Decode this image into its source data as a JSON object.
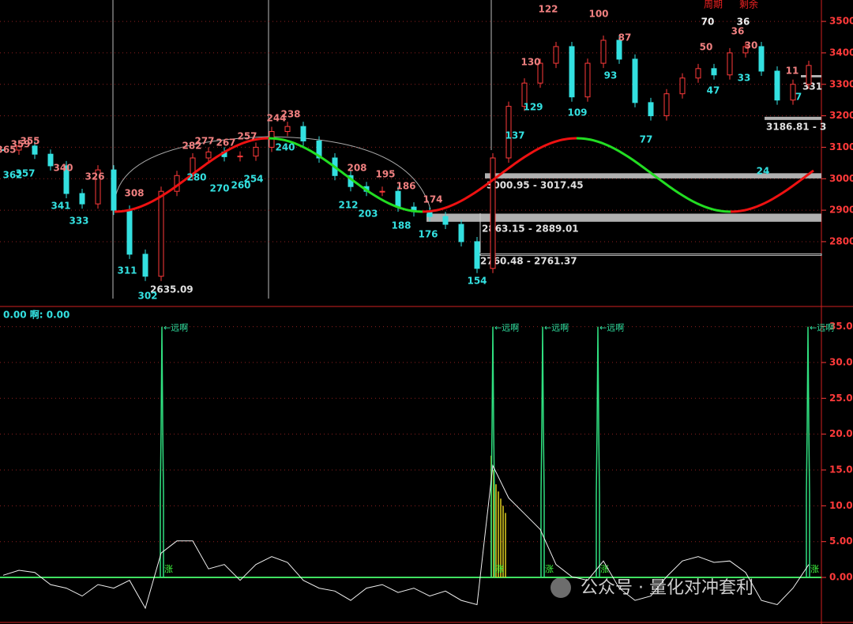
{
  "price_panel": {
    "ylim": [
      2594,
      3568
    ],
    "yticks": [
      2800,
      2900,
      3000,
      3100,
      3200,
      3300,
      3400,
      3500
    ],
    "closes": [
      3091,
      3104,
      3078,
      3041,
      2953,
      2920,
      3028,
      2900,
      2760,
      2690,
      2960,
      3010,
      3066,
      3085,
      3070,
      3072,
      3100,
      3150,
      3166,
      3120,
      3066,
      3010,
      2975,
      2960,
      2960,
      2910,
      2895,
      2880,
      2855,
      2800,
      2715,
      3066,
      3230,
      3304,
      3367,
      3420,
      3260,
      3367,
      3440,
      3380,
      3242,
      3200,
      3270,
      3320,
      3350,
      3330,
      3400,
      3420,
      3342,
      3250,
      3300,
      3360
    ],
    "high_labels": [
      365,
      359,
      355,
      340,
      326,
      308,
      282,
      277,
      267,
      257,
      244,
      238,
      208,
      195,
      186,
      174,
      122,
      100,
      130,
      87,
      50,
      36,
      30,
      11
    ],
    "low_labels": [
      362,
      357,
      341,
      333,
      311,
      302,
      280,
      270,
      260,
      254,
      240,
      212,
      203,
      188,
      176,
      154,
      137,
      129,
      109,
      93,
      77,
      47,
      33,
      24,
      7
    ],
    "ranges": [
      {
        "low": 3000.95,
        "high": 3017.45,
        "label": "3000.95 - 3017.45"
      },
      {
        "low": 2863.15,
        "high": 2889.01,
        "label": "2863.15 - 2889.01"
      },
      {
        "low": 2760.48,
        "high": 2761.37,
        "label": "2760.48 - 2761.37"
      },
      {
        "low": 3186.81,
        "label": "3186.81 - 3"
      }
    ],
    "point_labels": [
      "2635.09",
      "331"
    ],
    "headers": [
      "周期",
      "剩余"
    ],
    "header_values": [
      70,
      36
    ]
  },
  "indicator_panel": {
    "title": "0.00 啊: 0.00",
    "ylim": [
      -6.5,
      37.6
    ],
    "yticks": [
      {
        "value": 0,
        "label": "0.00"
      },
      {
        "value": 5,
        "label": "5.00"
      },
      {
        "value": 10,
        "label": "10.00"
      },
      {
        "value": 15,
        "label": "15.00"
      },
      {
        "value": 20,
        "label": "20.00"
      },
      {
        "value": 25,
        "label": "25.00"
      },
      {
        "value": 30,
        "label": "30.00"
      },
      {
        "value": 35,
        "label": "35.00"
      }
    ],
    "line": [
      0.3,
      1,
      0.7,
      -1,
      -1.5,
      -2.6,
      -1,
      -1.5,
      -0.4,
      -4.3,
      3.4,
      5.1,
      5.1,
      1.2,
      1.8,
      -0.4,
      1.8,
      2.9,
      2.1,
      -0.4,
      -1.5,
      -1.9,
      -3.2,
      -1.5,
      -1,
      -2.1,
      -1.5,
      -2.6,
      -1.9,
      -3.2,
      -3.8,
      15.6,
      11.1,
      8.9,
      6.7,
      1.8,
      0.1,
      -0.4,
      2.3,
      -1.5,
      -3.2,
      -2.6,
      0.1,
      2.3,
      2.9,
      2.1,
      2.3,
      0.7,
      -3.2,
      -3.8,
      -1.5,
      1.8
    ],
    "spike_values": [
      35,
      35,
      35,
      35,
      35
    ],
    "spike_label": "←远啊",
    "marker_label": "涨",
    "fill_values": [
      17,
      15,
      13,
      12,
      11,
      10,
      9
    ]
  },
  "watermark": "公众号 · 量化对冲套利"
}
